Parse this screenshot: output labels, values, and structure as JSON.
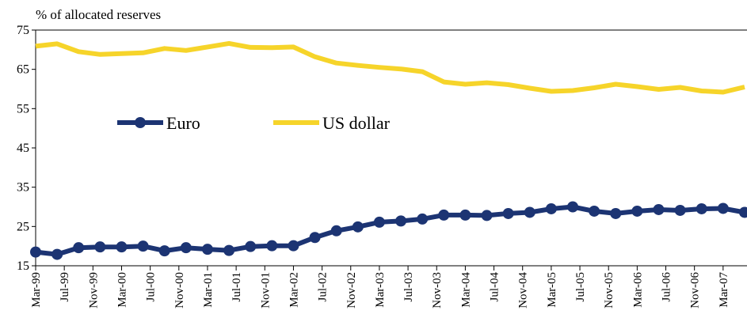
{
  "chart_data": {
    "type": "line",
    "title": "% of allocated reserves",
    "x": [
      "Mar-99",
      "Jun-99",
      "Sep-99",
      "Dec-99",
      "Mar-00",
      "Jun-00",
      "Sep-00",
      "Dec-00",
      "Mar-01",
      "Jun-01",
      "Sep-01",
      "Dec-01",
      "Mar-02",
      "Jun-02",
      "Sep-02",
      "Dec-02",
      "Mar-03",
      "Jun-03",
      "Sep-03",
      "Dec-03",
      "Mar-04",
      "Jun-04",
      "Sep-04",
      "Dec-04",
      "Mar-05",
      "Jun-05",
      "Sep-05",
      "Dec-05",
      "Mar-06",
      "Jun-06",
      "Sep-06",
      "Dec-06",
      "Mar-07",
      "Jun-07"
    ],
    "xticks": [
      "Mar-99",
      "Jul-99",
      "Nov-99",
      "Mar-00",
      "Jul-00",
      "Nov-00",
      "Mar-01",
      "Jul-01",
      "Nov-01",
      "Mar-02",
      "Jul-02",
      "Nov-02",
      "Mar-03",
      "Jul-03",
      "Nov-03",
      "Mar-04",
      "Jul-04",
      "Nov-04",
      "Mar-05",
      "Jul-05",
      "Nov-05",
      "Mar-06",
      "Jul-06",
      "Nov-06",
      "Mar-07"
    ],
    "series": [
      {
        "name": "Euro",
        "color": "#1c3473",
        "markers": true,
        "values": [
          18.5,
          17.9,
          19.6,
          19.8,
          19.8,
          20.0,
          18.8,
          19.6,
          19.2,
          18.9,
          19.9,
          20.1,
          20.1,
          22.2,
          23.9,
          24.9,
          26.1,
          26.4,
          26.9,
          27.9,
          27.9,
          27.8,
          28.3,
          28.6,
          29.5,
          30.0,
          28.9,
          28.3,
          28.9,
          29.3,
          29.1,
          29.5,
          29.6,
          28.6
        ]
      },
      {
        "name": "US dollar",
        "color": "#f6d42a",
        "markers": false,
        "values": [
          70.9,
          71.5,
          69.5,
          68.8,
          69.0,
          69.2,
          70.3,
          69.8,
          70.7,
          71.6,
          70.6,
          70.5,
          70.7,
          68.2,
          66.6,
          66.0,
          65.5,
          65.1,
          64.4,
          61.8,
          61.2,
          61.6,
          61.1,
          60.2,
          59.4,
          59.6,
          60.3,
          61.2,
          60.6,
          59.9,
          60.4,
          59.5,
          59.2,
          60.5
        ]
      }
    ],
    "ylim": [
      15,
      75
    ],
    "yticks": [
      15,
      25,
      35,
      45,
      55,
      65,
      75
    ]
  }
}
